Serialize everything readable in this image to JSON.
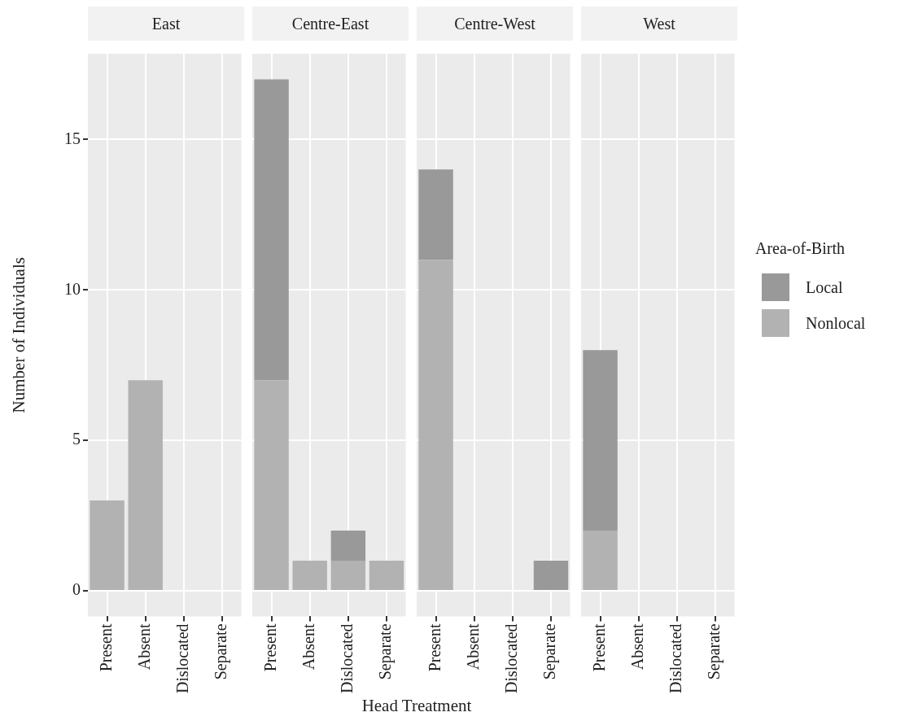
{
  "chart_data": [
    {
      "type": "bar",
      "title": "East",
      "ylabel": "Number of Individuals",
      "categories": [
        "Present",
        "Absent",
        "Dislocated",
        "Separate"
      ],
      "stacked": true,
      "ylim": [
        -0.85,
        17.85
      ],
      "yticks": [
        0,
        5,
        10,
        15
      ],
      "grid": true,
      "series": [
        {
          "color": "#b2b2b2",
          "values": [
            3,
            7,
            null,
            null
          ]
        },
        {
          "color": "#999999",
          "values": [
            null,
            null,
            null,
            null
          ]
        }
      ]
    },
    {
      "type": "bar",
      "title": "Centre-East",
      "xlabel": "Head Treatment",
      "categories": [
        "Present",
        "Absent",
        "Dislocated",
        "Separate"
      ],
      "stacked": true,
      "ylim": [
        -0.85,
        17.85
      ],
      "yticks": [
        0,
        5,
        10,
        15
      ],
      "grid": true,
      "tick_labels": "x",
      "series": [
        {
          "color": "#b2b2b2",
          "values": [
            7,
            1,
            1,
            1
          ]
        },
        {
          "color": "#999999",
          "values": [
            10,
            null,
            1,
            null
          ]
        }
      ]
    },
    {
      "type": "bar",
      "title": "Centre-West",
      "categories": [
        "Present",
        "Absent",
        "Dislocated",
        "Separate"
      ],
      "stacked": true,
      "ylim": [
        -0.85,
        17.85
      ],
      "yticks": [
        0,
        5,
        10,
        15
      ],
      "grid": true,
      "tick_labels": "x",
      "series": [
        {
          "color": "#b2b2b2",
          "values": [
            11,
            null,
            null,
            null
          ]
        },
        {
          "color": "#999999",
          "values": [
            3,
            null,
            null,
            1
          ]
        }
      ]
    },
    {
      "type": "bar",
      "title": "West",
      "categories": [
        "Present",
        "Absent",
        "Dislocated",
        "Separate"
      ],
      "stacked": true,
      "ylim": [
        -0.85,
        17.85
      ],
      "yticks": [
        0,
        5,
        10,
        15
      ],
      "grid": true,
      "tick_labels": "x",
      "legend": "right",
      "legend_title": "Area-of-Birth",
      "series": [
        {
          "name": "Nonlocal",
          "color": "#b2b2b2",
          "values": [
            2,
            null,
            null,
            null
          ]
        },
        {
          "name": "Local",
          "color": "#999999",
          "values": [
            6,
            null,
            null,
            null
          ]
        }
      ]
    }
  ]
}
